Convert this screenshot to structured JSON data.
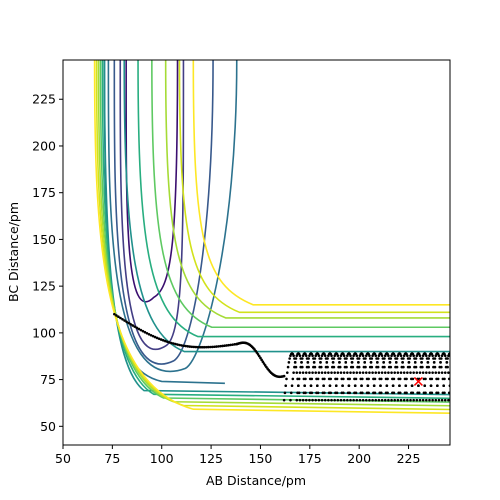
{
  "chart_data": {
    "type": "contour",
    "title": "",
    "xlabel": "AB Distance/pm",
    "ylabel": "BC Distance/pm",
    "xlim": [
      50,
      246
    ],
    "ylim": [
      40,
      246
    ],
    "xticks": [
      50,
      75,
      100,
      125,
      150,
      175,
      200,
      225
    ],
    "yticks": [
      50,
      75,
      100,
      125,
      150,
      175,
      200,
      225
    ],
    "grid": false,
    "legend": "none",
    "colormap": "viridis",
    "contour_levels": [
      {
        "color": "#3b0f70",
        "level": 1
      },
      {
        "color": "#433e85",
        "level": 2
      },
      {
        "color": "#38598c",
        "level": 3
      },
      {
        "color": "#2c728e",
        "level": 4
      },
      {
        "color": "#21918c",
        "level": 5
      },
      {
        "color": "#28ae80",
        "level": 6
      },
      {
        "color": "#5ec962",
        "level": 7
      },
      {
        "color": "#a5db36",
        "level": 8
      },
      {
        "color": "#d2e21b",
        "level": 9
      },
      {
        "color": "#fde725",
        "level": 10
      }
    ],
    "trajectory": {
      "color": "#000000",
      "start": [
        76,
        110
      ],
      "barrier": [
        138,
        94
      ],
      "end_marker": {
        "x": 230,
        "y": 74,
        "color": "#ff0000",
        "symbol": "x"
      }
    }
  }
}
